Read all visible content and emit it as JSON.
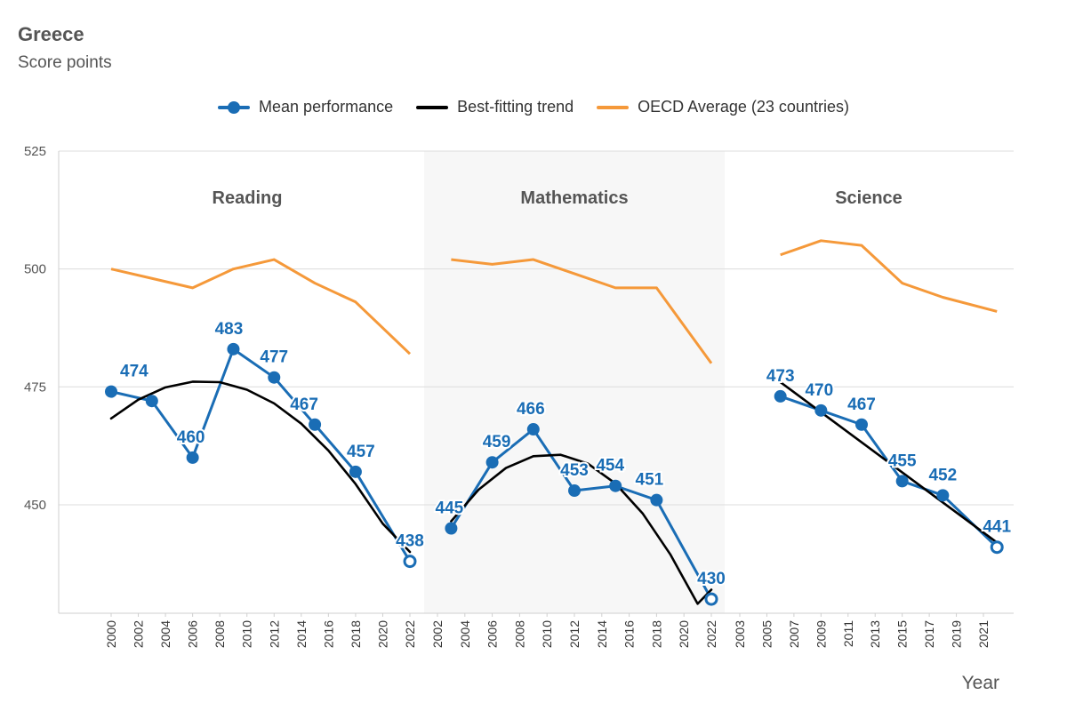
{
  "header": {
    "title": "Greece",
    "subtitle": "Score points"
  },
  "legend": {
    "items": [
      {
        "label": "Mean performance",
        "color": "#1a6db5"
      },
      {
        "label": "Best-fitting trend",
        "color": "#000000"
      },
      {
        "label": "OECD Average (23 countries)",
        "color": "#f5993a"
      }
    ]
  },
  "chart_data": {
    "type": "line",
    "title": "Greece",
    "subtitle": "Score points",
    "xlabel": "Year",
    "ylabel": "Score points",
    "ylim": [
      427,
      525
    ],
    "yticks": [
      450,
      475,
      500,
      525
    ],
    "grid": true,
    "legend_position": "top-center",
    "panels": [
      {
        "name": "Reading",
        "x_ticks": [
          "2000",
          "2002",
          "2004",
          "2006",
          "2008",
          "2010",
          "2012",
          "2014",
          "2016",
          "2018",
          "2020",
          "2022"
        ],
        "series": [
          {
            "name": "Mean performance",
            "x": [
              2000,
              2003,
              2006,
              2009,
              2012,
              2015,
              2018,
              2022
            ],
            "values": [
              474,
              472,
              460,
              483,
              477,
              467,
              457,
              438
            ],
            "data_labels": [
              "474",
              "",
              "460",
              "483",
              "477",
              "467",
              "457",
              "438"
            ]
          },
          {
            "name": "Best-fitting trend",
            "x": [
              2000,
              2002,
              2004,
              2006,
              2008,
              2010,
              2012,
              2014,
              2016,
              2018,
              2020,
              2022
            ],
            "values": [
              468.3,
              472.3,
              474.9,
              476.1,
              476.0,
              474.4,
              471.5,
              467.2,
              461.5,
              454.4,
              446.0,
              440.0
            ]
          },
          {
            "name": "OECD Average (23 countries)",
            "x": [
              2000,
              2003,
              2006,
              2009,
              2012,
              2015,
              2018,
              2022
            ],
            "values": [
              500,
              498,
              496,
              500,
              502,
              497,
              493,
              482
            ]
          }
        ]
      },
      {
        "name": "Mathematics",
        "x_ticks": [
          "2002",
          "2004",
          "2006",
          "2008",
          "2010",
          "2012",
          "2014",
          "2016",
          "2018",
          "2020",
          "2022"
        ],
        "series": [
          {
            "name": "Mean performance",
            "x": [
              2003,
              2006,
              2009,
              2012,
              2015,
              2018,
              2022
            ],
            "values": [
              445,
              459,
              466,
              453,
              454,
              451,
              430
            ],
            "data_labels": [
              "445",
              "459",
              "466",
              "453",
              "454",
              "451",
              "430"
            ]
          },
          {
            "name": "Best-fitting trend",
            "x": [
              2003,
              2005,
              2007,
              2009,
              2011,
              2013,
              2015,
              2017,
              2019,
              2021,
              2022
            ],
            "values": [
              446.5,
              453.2,
              457.8,
              460.3,
              460.6,
              458.7,
              454.5,
              448.1,
              439.5,
              429.0,
              432.0
            ]
          },
          {
            "name": "OECD Average (23 countries)",
            "x": [
              2003,
              2006,
              2009,
              2012,
              2015,
              2018,
              2022
            ],
            "values": [
              502,
              501,
              502,
              499,
              496,
              496,
              480
            ]
          }
        ]
      },
      {
        "name": "Science",
        "x_ticks": [
          "2003",
          "2005",
          "2007",
          "2009",
          "2011",
          "2013",
          "2015",
          "2017",
          "2019",
          "2021"
        ],
        "series": [
          {
            "name": "Mean performance",
            "x": [
              2006,
              2009,
              2012,
              2015,
              2018,
              2022
            ],
            "values": [
              473,
              470,
              467,
              455,
              452,
              441
            ],
            "data_labels": [
              "473",
              "470",
              "467",
              "455",
              "452",
              "441"
            ]
          },
          {
            "name": "Best-fitting trend",
            "x": [
              2006,
              2022
            ],
            "values": [
              476,
              442
            ]
          },
          {
            "name": "OECD Average (23 countries)",
            "x": [
              2006,
              2009,
              2012,
              2015,
              2018,
              2022
            ],
            "values": [
              503,
              506,
              505,
              497,
              494,
              491
            ]
          }
        ]
      }
    ]
  }
}
